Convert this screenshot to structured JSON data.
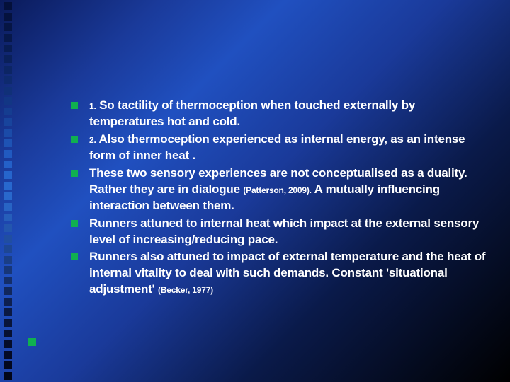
{
  "slide": {
    "background_gradient": [
      "#0a1a5a",
      "#1a3a9a",
      "#2050c0",
      "#1a3a9a",
      "#0a1a4a",
      "#000000"
    ],
    "bullet_color": "#10b050",
    "text_color": "#ffffff",
    "font_family": "Verdana",
    "body_fontsize": 17,
    "subnum_fontsize": 12,
    "bullets": [
      {
        "prefix_num": "1.",
        "text": "So tactility of thermoception when touched externally by temperatures hot and cold."
      },
      {
        "prefix_num": " 2.",
        "text": "Also thermoception experienced  as  internal energy, as an intense form of inner heat ."
      },
      {
        "prefix_num": "",
        "text": "These two sensory experiences are not conceptualised as a duality. Rather they are in dialogue ",
        "cite": "(Patterson, 2009).",
        "text2": " A mutually influencing interaction between them."
      },
      {
        "prefix_num": "",
        "text": "Runners attuned to internal  heat which impact at the external  sensory level of increasing/reducing pace."
      },
      {
        "prefix_num": "",
        "text": "Runners also attuned to impact of external temperature and the heat of internal vitality to deal with such demands. Constant 'situational adjustment' ",
        "cite": "(Becker, 1977)"
      }
    ],
    "strip_squares": {
      "count": 36,
      "size": 11,
      "colors_top_to_bottom": [
        "#04103a",
        "#05123e",
        "#061544",
        "#07184a",
        "#081c52",
        "#0a205a",
        "#0c2564",
        "#0e2a6e",
        "#103078",
        "#123684",
        "#153d90",
        "#18449c",
        "#1b4ba8",
        "#1e53b4",
        "#215ac0",
        "#2460c8",
        "#2665cc",
        "#2868ce",
        "#2968cc",
        "#2864c4",
        "#265eba",
        "#2356ae",
        "#204ea2",
        "#1d4694",
        "#1a3e86",
        "#173678",
        "#142e6a",
        "#11275c",
        "#0e2050",
        "#0b1a44",
        "#09153a",
        "#071132",
        "#050d2a",
        "#040a24",
        "#03081e",
        "#020618"
      ]
    }
  }
}
